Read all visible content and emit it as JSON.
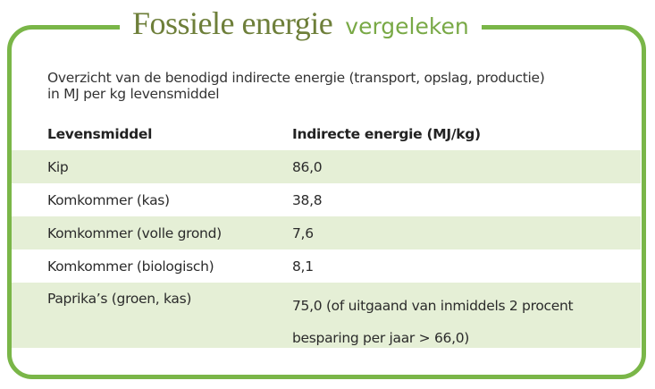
{
  "title": {
    "main": "Fossiele energie",
    "secondary": "vergeleken"
  },
  "intro": {
    "line1": "Overzicht van de benodigd indirecte energie (transport, opslag, productie)",
    "line2": "in MJ per kg levensmiddel"
  },
  "table": {
    "headers": [
      "Levensmiddel",
      "Indirecte energie (MJ/kg)"
    ],
    "rows": [
      {
        "item": "Kip",
        "value": "86,0"
      },
      {
        "item": "Komkommer (kas)",
        "value": "38,8"
      },
      {
        "item": "Komkommer (volle grond)",
        "value": "7,6"
      },
      {
        "item": "Komkommer (biologisch)",
        "value": "8,1"
      },
      {
        "item": "Paprika’s (groen, kas)",
        "value": "75,0 (of uitgaand van inmiddels 2 procent besparing per jaar > 66,0)"
      }
    ]
  },
  "colors": {
    "border": "#7ab648",
    "row_highlight": "#e5efd6",
    "title": "#6e7f3a",
    "subtitle": "#79a946"
  }
}
